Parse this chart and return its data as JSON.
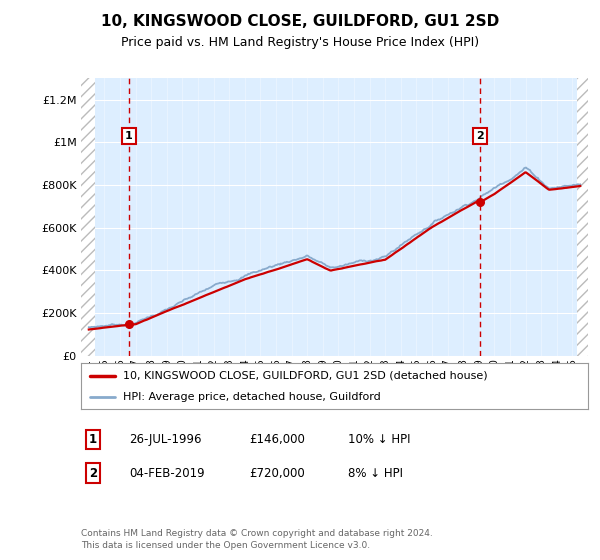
{
  "title": "10, KINGSWOOD CLOSE, GUILDFORD, GU1 2SD",
  "subtitle": "Price paid vs. HM Land Registry's House Price Index (HPI)",
  "legend_label_red": "10, KINGSWOOD CLOSE, GUILDFORD, GU1 2SD (detached house)",
  "legend_label_blue": "HPI: Average price, detached house, Guildford",
  "annotation1_date": "26-JUL-1996",
  "annotation1_price": "£146,000",
  "annotation1_hpi": "10% ↓ HPI",
  "annotation2_date": "04-FEB-2019",
  "annotation2_price": "£720,000",
  "annotation2_hpi": "8% ↓ HPI",
  "footer": "Contains HM Land Registry data © Crown copyright and database right 2024.\nThis data is licensed under the Open Government Licence v3.0.",
  "ylim": [
    0,
    1300000
  ],
  "xlim_start": 1993.5,
  "xlim_end": 2026.0,
  "sale1_year": 1996.57,
  "sale1_price": 146000,
  "sale2_year": 2019.09,
  "sale2_price": 720000,
  "red_color": "#cc0000",
  "blue_color": "#88aacc",
  "plot_bg": "#ddeeff",
  "hatch_bg": "white",
  "hatch_edge": "#aaaaaa",
  "title_fontsize": 11,
  "subtitle_fontsize": 9,
  "tick_fontsize": 7,
  "ytick_fontsize": 8,
  "legend_fontsize": 8,
  "ann_fontsize": 8.5
}
